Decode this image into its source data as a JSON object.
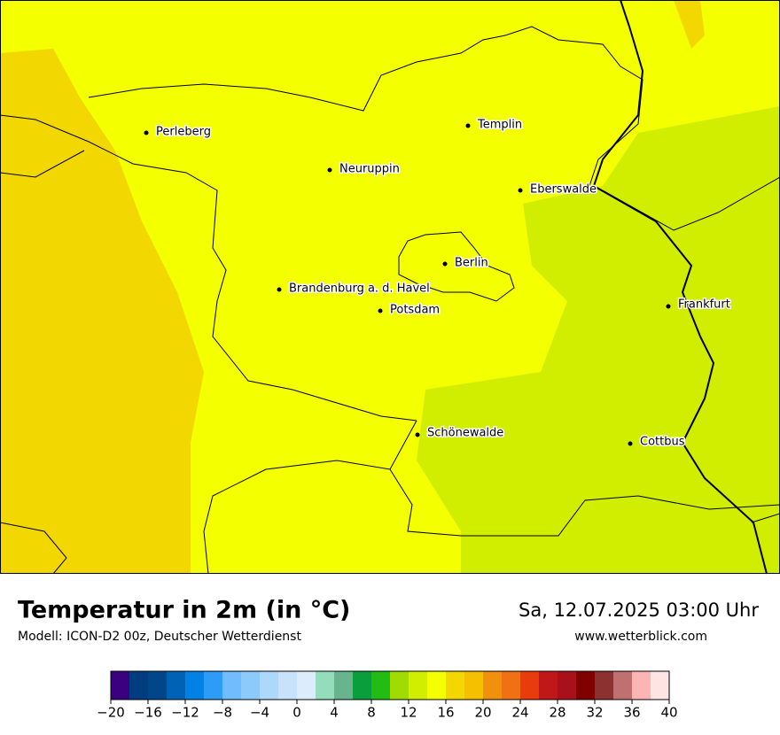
{
  "map": {
    "cities": [
      "Perleberg",
      "Templin",
      "Neuruppin",
      "Eberswalde",
      "Berlin",
      "Brandenburg a. d. Havel",
      "Potsdam",
      "Frankfurt",
      "Schönewalde",
      "Cottbus"
    ]
  },
  "footer": {
    "title": "Temperatur in 2m (in °C)",
    "model": "Modell: ICON-D2 00z, Deutscher Wetterdienst",
    "date": "Sa, 12.07.2025 03:00 Uhr",
    "website": "www.wetterblick.com"
  },
  "colorbar": {
    "lim": [
      -20,
      40
    ],
    "colors": [
      "#3a0080",
      "#003c80",
      "#00478a",
      "#0062b4",
      "#0082e4",
      "#2c9cf6",
      "#70bcfc",
      "#8ccafc",
      "#acd8fc",
      "#c8e2fc",
      "#dcecfc",
      "#94dcbc",
      "#68b48c",
      "#0a9e3c",
      "#22bc14",
      "#a0dc00",
      "#d2ee00",
      "#f4ff00",
      "#f2d800",
      "#f4c000",
      "#f0900c",
      "#f07014",
      "#e83c0c",
      "#c01818",
      "#a8101c",
      "#800000",
      "#8c3030",
      "#c07070",
      "#fcb4b4",
      "#ffe4e4"
    ],
    "ticks": [
      {
        "value": -20,
        "label": "−20"
      },
      {
        "value": -16,
        "label": "−16"
      },
      {
        "value": -12,
        "label": "−12"
      },
      {
        "value": -8,
        "label": "−8"
      },
      {
        "value": -4,
        "label": "−4"
      },
      0,
      4,
      8,
      12,
      16,
      20,
      24,
      28,
      32,
      36,
      40
    ]
  }
}
